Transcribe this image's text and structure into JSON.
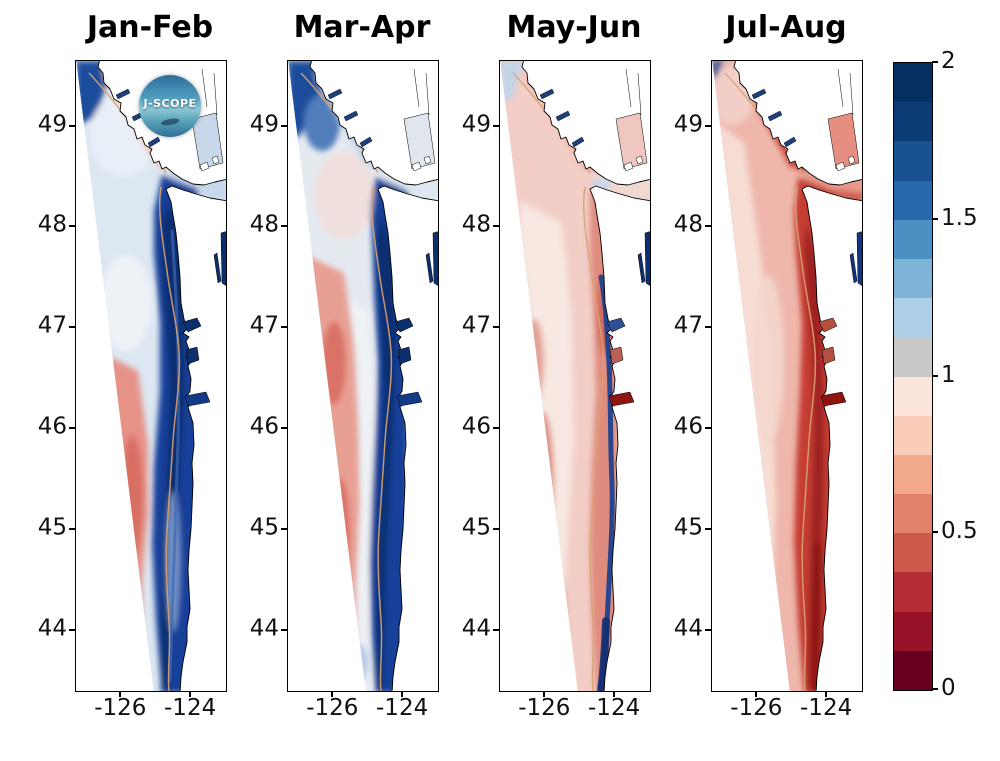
{
  "panels": [
    {
      "title": "Jan-Feb"
    },
    {
      "title": "Mar-Apr"
    },
    {
      "title": "May-Jun"
    },
    {
      "title": "Jul-Aug"
    }
  ],
  "axes": {
    "lat_ticks": [
      "49",
      "48",
      "47",
      "46",
      "45",
      "44"
    ],
    "lat_tick_values": [
      49,
      48,
      47,
      46,
      45,
      44
    ],
    "lon_ticks": [
      "-126",
      "-124"
    ],
    "lon_tick_values": [
      -126,
      -124
    ],
    "lat_range": [
      43.4,
      49.65
    ],
    "lon_range": [
      -127.3,
      -123.0
    ]
  },
  "colorbar": {
    "tick_labels": [
      "2",
      "1.5",
      "1",
      "0.5",
      "0"
    ],
    "tick_values": [
      2,
      1.5,
      1,
      0.5,
      0
    ],
    "value_range": [
      0,
      2
    ],
    "segments_top_to_bottom": [
      "#053061",
      "#0b3c76",
      "#185090",
      "#2767ab",
      "#4b90c2",
      "#7db4d7",
      "#aecfe6",
      "#c9c9c9",
      "#fbe4da",
      "#f9cdb9",
      "#f2a88a",
      "#e2826a",
      "#cd584c",
      "#b42d35",
      "#971327",
      "#67001f"
    ]
  },
  "logo": {
    "label": "J-SCOPE"
  },
  "chart_data": {
    "type": "heatmap",
    "layout": "four geographic map panels (small multiples) sharing one discrete colorbar on the right",
    "region": "Pacific Northwest coast: Vancouver Island, Strait of Juan de Fuca, Washington and Oregon coasts",
    "panel_titles": [
      "Jan-Feb",
      "Mar-Apr",
      "May-Jun",
      "Jul-Aug"
    ],
    "x_axis": {
      "tick_labels": [
        -126,
        -124
      ],
      "range_longitude_deg": [
        -127.3,
        -123.0
      ]
    },
    "y_axis": {
      "tick_labels": [
        49,
        48,
        47,
        46,
        45,
        44
      ],
      "range_latitude_deg": [
        43.4,
        49.65
      ]
    },
    "colorbar": {
      "range": [
        0,
        2
      ],
      "ticks": [
        0,
        0.5,
        1,
        1.5,
        2
      ],
      "style": "discrete diverging red-white-blue; dark red at 0, gray band near 1, dark blue at 2"
    },
    "panel_patterns": [
      {
        "panel": "Jan-Feb",
        "pattern": "Wide dark-blue band (values near 1.5-2) over the shelf along the entire coast; pale blue/white water off Vancouver Island and in the strait; pink band (below 1) offshore to the southwest; coastal estuaries dark blue."
      },
      {
        "panel": "Mar-Apr",
        "pattern": "Dark-blue band narrows toward the coast; offshore pink (below 1) area expands northward and westward with a whitish divider between pink and blue; dark blue persists at the northwest corner of the domain."
      },
      {
        "panel": "May-Jun",
        "pattern": "Mostly pink/light red (below 1) across the domain with a whiter mid-shelf band; only a thin dark-blue strip remains right at the coast; dark-red patch at the Columbia River mouth near 46.2 N."
      },
      {
        "panel": "Jul-Aug",
        "pattern": "Red band (about 0.25-0.6) hugs the entire coast with darkest red nearshore in the south; pale pink offshore; red also along the Vancouver Island coast and strait; dark-red patch at the Columbia River mouth; small dark-blue inland-water specks remain."
      }
    ],
    "annotations": [
      "J-SCOPE circular logo overlaid at the top of the first panel",
      "tan shelf-break contour line meanders along the coast in every panel",
      "white area in the lower-left of each panel is outside the model domain (diagonal domain edge)"
    ]
  }
}
